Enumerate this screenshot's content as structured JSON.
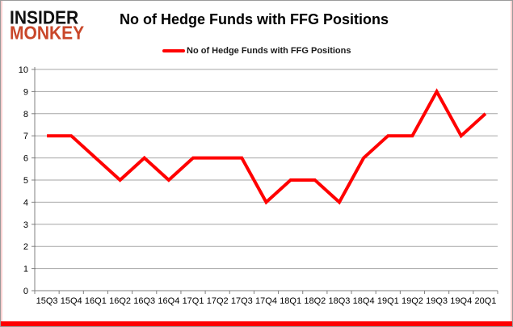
{
  "logo": {
    "line1": "INSIDER",
    "line2": "MONKEY"
  },
  "colors": {
    "logo_accent": "#c9472a",
    "line": "#ff0000",
    "grid": "#a6a6a6",
    "axis": "#808080",
    "text": "#000000",
    "accent_bar": "#fe0000"
  },
  "chart_data": {
    "type": "line",
    "title": "No of Hedge Funds with FFG Positions",
    "categories": [
      "15Q3",
      "15Q4",
      "16Q1",
      "16Q2",
      "16Q3",
      "16Q4",
      "17Q1",
      "17Q2",
      "17Q3",
      "17Q4",
      "18Q1",
      "18Q2",
      "18Q3",
      "18Q4",
      "19Q1",
      "19Q2",
      "19Q3",
      "19Q4",
      "20Q1"
    ],
    "series": [
      {
        "name": "No of Hedge Funds with FFG Positions",
        "values": [
          7,
          7,
          6,
          5,
          6,
          5,
          6,
          6,
          6,
          4,
          5,
          5,
          4,
          6,
          7,
          7,
          9,
          7,
          8
        ],
        "color": "#ff0000"
      }
    ],
    "xlabel": "",
    "ylabel": "",
    "ylim": [
      0,
      10
    ],
    "ytick_step": 1,
    "grid": true,
    "legend_position": "top-center"
  }
}
